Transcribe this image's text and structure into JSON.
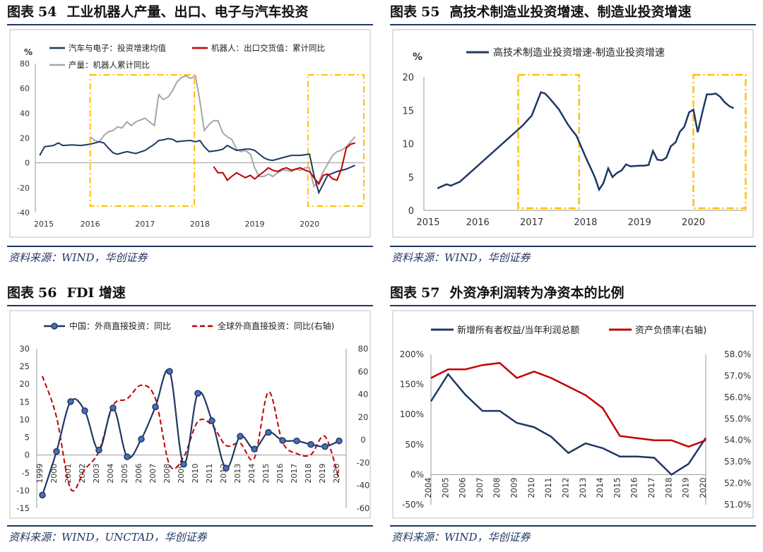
{
  "panels": [
    {
      "title_prefix": "图表",
      "title_num": "54",
      "title": "工业机器人产量、出口、电子与汽车投资",
      "source": "资料来源：WIND，华创证券"
    },
    {
      "title_prefix": "图表",
      "title_num": "55",
      "title": "高技术制造业投资增速、制造业投资增速",
      "source": "资料来源：WIND，华创证券"
    },
    {
      "title_prefix": "图表",
      "title_num": "56",
      "title": "FDI 增速",
      "source": "资料来源：WIND，UNCTAD，华创证券"
    },
    {
      "title_prefix": "图表",
      "title_num": "57",
      "title": "外资净利润转为净资本的比例",
      "source": "资料来源：WIND，华创证券"
    }
  ],
  "colors": {
    "navy": "#1f3864",
    "red": "#c00000",
    "gray": "#a6a6a6",
    "gold": "#ffc000"
  },
  "chart_data": [
    {
      "type": "line",
      "unit": "%",
      "ylim": [
        -40,
        80
      ],
      "yticks": [
        -40,
        -20,
        0,
        20,
        40,
        60,
        80
      ],
      "xlim": [
        2015,
        2020.99
      ],
      "xticks": [
        2015,
        2016,
        2017,
        2018,
        2019,
        2020
      ],
      "highlight_ranges": [
        [
          2016,
          2017.9
        ],
        [
          2019.97,
          2020.99
        ]
      ],
      "series": [
        {
          "name": "汽车与电子：投资增速均值",
          "color": "#1f3864",
          "points": [
            [
              2015.08,
              6
            ],
            [
              2015.17,
              13
            ],
            [
              2015.33,
              14
            ],
            [
              2015.42,
              16
            ],
            [
              2015.5,
              14
            ],
            [
              2015.67,
              14.5
            ],
            [
              2015.83,
              14
            ],
            [
              2016,
              15
            ],
            [
              2016.17,
              17
            ],
            [
              2016.25,
              16
            ],
            [
              2016.33,
              12
            ],
            [
              2016.42,
              8
            ],
            [
              2016.5,
              7
            ],
            [
              2016.67,
              9
            ],
            [
              2016.83,
              7.5
            ],
            [
              2017,
              10
            ],
            [
              2017.17,
              15
            ],
            [
              2017.25,
              18
            ],
            [
              2017.33,
              18.5
            ],
            [
              2017.42,
              19.5
            ],
            [
              2017.5,
              19
            ],
            [
              2017.58,
              17
            ],
            [
              2017.67,
              17.5
            ],
            [
              2017.83,
              18
            ],
            [
              2017.92,
              17
            ],
            [
              2018,
              18
            ],
            [
              2018.08,
              13
            ],
            [
              2018.17,
              9
            ],
            [
              2018.33,
              10
            ],
            [
              2018.42,
              11
            ],
            [
              2018.5,
              14
            ],
            [
              2018.67,
              10
            ],
            [
              2018.83,
              11
            ],
            [
              2018.92,
              11
            ],
            [
              2019,
              10
            ],
            [
              2019.17,
              4
            ],
            [
              2019.25,
              2.5
            ],
            [
              2019.33,
              2
            ],
            [
              2019.5,
              4
            ],
            [
              2019.58,
              5
            ],
            [
              2019.67,
              6
            ],
            [
              2019.83,
              6
            ],
            [
              2019.92,
              6.5
            ],
            [
              2020,
              7
            ],
            [
              2020.08,
              -10
            ],
            [
              2020.17,
              -24
            ],
            [
              2020.25,
              -17
            ],
            [
              2020.33,
              -10
            ],
            [
              2020.5,
              -7
            ],
            [
              2020.67,
              -5
            ],
            [
              2020.83,
              -2
            ]
          ]
        },
        {
          "name": "机器人：出口交货值：累计同比",
          "color": "#c00000",
          "points": [
            [
              2018.25,
              -3
            ],
            [
              2018.33,
              -8
            ],
            [
              2018.42,
              -8
            ],
            [
              2018.5,
              -14
            ],
            [
              2018.58,
              -11
            ],
            [
              2018.67,
              -8
            ],
            [
              2018.75,
              -10
            ],
            [
              2018.83,
              -12
            ],
            [
              2018.92,
              -10
            ],
            [
              2019,
              -13
            ],
            [
              2019.08,
              -10
            ],
            [
              2019.17,
              -7
            ],
            [
              2019.25,
              -4
            ],
            [
              2019.33,
              -6
            ],
            [
              2019.42,
              -7
            ],
            [
              2019.5,
              -5
            ],
            [
              2019.58,
              -4
            ],
            [
              2019.67,
              -6
            ],
            [
              2019.75,
              -5
            ],
            [
              2019.83,
              -4
            ],
            [
              2019.92,
              -6
            ],
            [
              2020,
              -7
            ],
            [
              2020.08,
              -12
            ],
            [
              2020.17,
              -17
            ],
            [
              2020.25,
              -10
            ],
            [
              2020.33,
              -9
            ],
            [
              2020.42,
              -13
            ],
            [
              2020.5,
              -14
            ],
            [
              2020.58,
              -5
            ],
            [
              2020.67,
              12
            ],
            [
              2020.75,
              15
            ],
            [
              2020.83,
              16
            ]
          ]
        },
        {
          "name": "产量：机器人累计同比",
          "color": "#a6a6a6",
          "points": [
            [
              2016,
              21
            ],
            [
              2016.08,
              18
            ],
            [
              2016.17,
              17
            ],
            [
              2016.25,
              22
            ],
            [
              2016.33,
              25
            ],
            [
              2016.42,
              26
            ],
            [
              2016.5,
              29
            ],
            [
              2016.58,
              28
            ],
            [
              2016.67,
              33
            ],
            [
              2016.75,
              30
            ],
            [
              2016.83,
              33
            ],
            [
              2017,
              36
            ],
            [
              2017.08,
              33
            ],
            [
              2017.17,
              30
            ],
            [
              2017.25,
              55
            ],
            [
              2017.33,
              51
            ],
            [
              2017.42,
              53
            ],
            [
              2017.5,
              58
            ],
            [
              2017.58,
              65
            ],
            [
              2017.67,
              69
            ],
            [
              2017.75,
              70
            ],
            [
              2017.83,
              68
            ],
            [
              2017.92,
              70
            ],
            [
              2018,
              50
            ],
            [
              2018.08,
              26
            ],
            [
              2018.17,
              31
            ],
            [
              2018.25,
              34
            ],
            [
              2018.33,
              34
            ],
            [
              2018.42,
              24
            ],
            [
              2018.5,
              21
            ],
            [
              2018.58,
              19
            ],
            [
              2018.67,
              11
            ],
            [
              2018.75,
              9
            ],
            [
              2018.83,
              10
            ],
            [
              2018.92,
              7
            ],
            [
              2019,
              -4
            ],
            [
              2019.08,
              -11
            ],
            [
              2019.17,
              -11
            ],
            [
              2019.25,
              -9
            ],
            [
              2019.33,
              -11
            ],
            [
              2019.42,
              -8
            ],
            [
              2019.5,
              -6
            ],
            [
              2019.58,
              -6
            ],
            [
              2019.67,
              -7
            ],
            [
              2019.75,
              -5
            ],
            [
              2019.83,
              -6
            ],
            [
              2019.92,
              -4
            ],
            [
              2020,
              -4
            ],
            [
              2020.08,
              -19
            ],
            [
              2020.17,
              -15
            ],
            [
              2020.25,
              -7
            ],
            [
              2020.33,
              -1
            ],
            [
              2020.42,
              6
            ],
            [
              2020.5,
              9
            ],
            [
              2020.58,
              10
            ],
            [
              2020.67,
              13
            ],
            [
              2020.75,
              17
            ],
            [
              2020.83,
              21
            ]
          ]
        }
      ]
    },
    {
      "type": "line",
      "unit": "%",
      "ylim": [
        0,
        20
      ],
      "yticks": [
        0,
        5,
        10,
        15,
        20
      ],
      "xlim": [
        2015,
        2020.99
      ],
      "xticks": [
        2015,
        2016,
        2017,
        2018,
        2019,
        2020
      ],
      "highlight_ranges": [
        [
          2016.75,
          2017.88
        ],
        [
          2020.0,
          2020.97
        ]
      ],
      "series": [
        {
          "name": "高技术制造业投资增速-制造业投资增速",
          "color": "#1f3864",
          "points": [
            [
              2015.25,
              3.3
            ],
            [
              2015.42,
              3.9
            ],
            [
              2015.5,
              3.7
            ],
            [
              2015.67,
              4.3
            ],
            [
              2016.83,
              12.7
            ],
            [
              2017,
              14.2
            ],
            [
              2017.17,
              17.7
            ],
            [
              2017.25,
              17.5
            ],
            [
              2017.33,
              16.8
            ],
            [
              2017.5,
              15.2
            ],
            [
              2017.67,
              12.9
            ],
            [
              2017.75,
              12.0
            ],
            [
              2017.83,
              11.2
            ],
            [
              2018,
              8.0
            ],
            [
              2018.17,
              5.0
            ],
            [
              2018.25,
              3.1
            ],
            [
              2018.33,
              4.1
            ],
            [
              2018.42,
              6.3
            ],
            [
              2018.5,
              5.0
            ],
            [
              2018.58,
              5.6
            ],
            [
              2018.67,
              6.0
            ],
            [
              2018.75,
              6.9
            ],
            [
              2018.83,
              6.6
            ],
            [
              2019,
              6.7
            ],
            [
              2019.08,
              6.7
            ],
            [
              2019.17,
              6.8
            ],
            [
              2019.25,
              8.9
            ],
            [
              2019.33,
              7.6
            ],
            [
              2019.42,
              7.5
            ],
            [
              2019.5,
              7.9
            ],
            [
              2019.58,
              9.6
            ],
            [
              2019.67,
              10.2
            ],
            [
              2019.75,
              11.8
            ],
            [
              2019.83,
              12.5
            ],
            [
              2019.92,
              14.7
            ],
            [
              2020.0,
              15.1
            ],
            [
              2020.08,
              11.7
            ],
            [
              2020.17,
              14.8
            ],
            [
              2020.25,
              17.4
            ],
            [
              2020.33,
              17.4
            ],
            [
              2020.42,
              17.5
            ],
            [
              2020.5,
              17.0
            ],
            [
              2020.58,
              16.2
            ],
            [
              2020.67,
              15.6
            ],
            [
              2020.75,
              15.3
            ]
          ]
        }
      ]
    },
    {
      "type": "line",
      "ylim_left": [
        -15,
        30
      ],
      "yticks_left": [
        -15,
        -10,
        -5,
        0,
        5,
        10,
        15,
        20,
        25,
        30
      ],
      "ylim_right": [
        -60,
        80
      ],
      "yticks_right": [
        -60,
        -40,
        -20,
        0,
        20,
        40,
        60,
        80
      ],
      "categories": [
        "1999",
        "2000",
        "2001",
        "2002",
        "2003",
        "2004",
        "2005",
        "2006",
        "2007",
        "2008",
        "2009",
        "2010",
        "2011",
        "2012",
        "2013",
        "2014",
        "2015",
        "2016",
        "2017",
        "2018",
        "2019",
        "2020"
      ],
      "series": [
        {
          "name": "中国：外商直接投资：同比",
          "axis": "left",
          "color": "#1f3864",
          "values": [
            -11.3,
            1.0,
            15.1,
            12.5,
            1.4,
            13.3,
            -0.5,
            4.5,
            13.6,
            23.6,
            -2.6,
            17.4,
            9.7,
            -3.7,
            5.3,
            1.7,
            6.4,
            4.1,
            4.0,
            3.0,
            2.4,
            4.0
          ]
        },
        {
          "name": "全球外商直接投资：同比(右轴)",
          "axis": "right",
          "color": "#c00000",
          "values": [
            56,
            20,
            -43,
            -26,
            -10,
            30,
            36,
            48,
            36,
            -22,
            -15,
            16,
            13,
            -5,
            -3,
            -16,
            42,
            -2,
            -12,
            -13,
            3,
            -35
          ]
        }
      ]
    },
    {
      "type": "line",
      "categories": [
        "2004",
        "2005",
        "2006",
        "2007",
        "2008",
        "2009",
        "2010",
        "2011",
        "2012",
        "2013",
        "2014",
        "2015",
        "2016",
        "2017",
        "2018",
        "2019",
        "2020"
      ],
      "ylim_left": [
        -0.5,
        2.0
      ],
      "yticks_left": [
        "-50%",
        "0%",
        "50%",
        "100%",
        "150%",
        "200%"
      ],
      "ylim_right": [
        51.0,
        58.0
      ],
      "yticks_right": [
        "51.0%",
        "52.0%",
        "53.0%",
        "54.0%",
        "55.0%",
        "56.0%",
        "57.0%",
        "58.0%"
      ],
      "series": [
        {
          "name": "新增所有者权益/当年利润总额",
          "axis": "left",
          "color": "#1f3864",
          "values": [
            1.22,
            1.67,
            1.33,
            1.06,
            1.06,
            0.86,
            0.79,
            0.63,
            0.36,
            0.52,
            0.44,
            0.3,
            0.3,
            0.28,
            0.0,
            0.18,
            0.61
          ]
        },
        {
          "name": "资产负债率(右轴)",
          "axis": "right",
          "color": "#c00000",
          "values": [
            56.9,
            57.3,
            57.3,
            57.5,
            57.6,
            56.9,
            57.2,
            56.9,
            56.5,
            56.1,
            55.5,
            54.2,
            54.1,
            54.0,
            54.0,
            53.7,
            54.0
          ]
        }
      ]
    }
  ]
}
